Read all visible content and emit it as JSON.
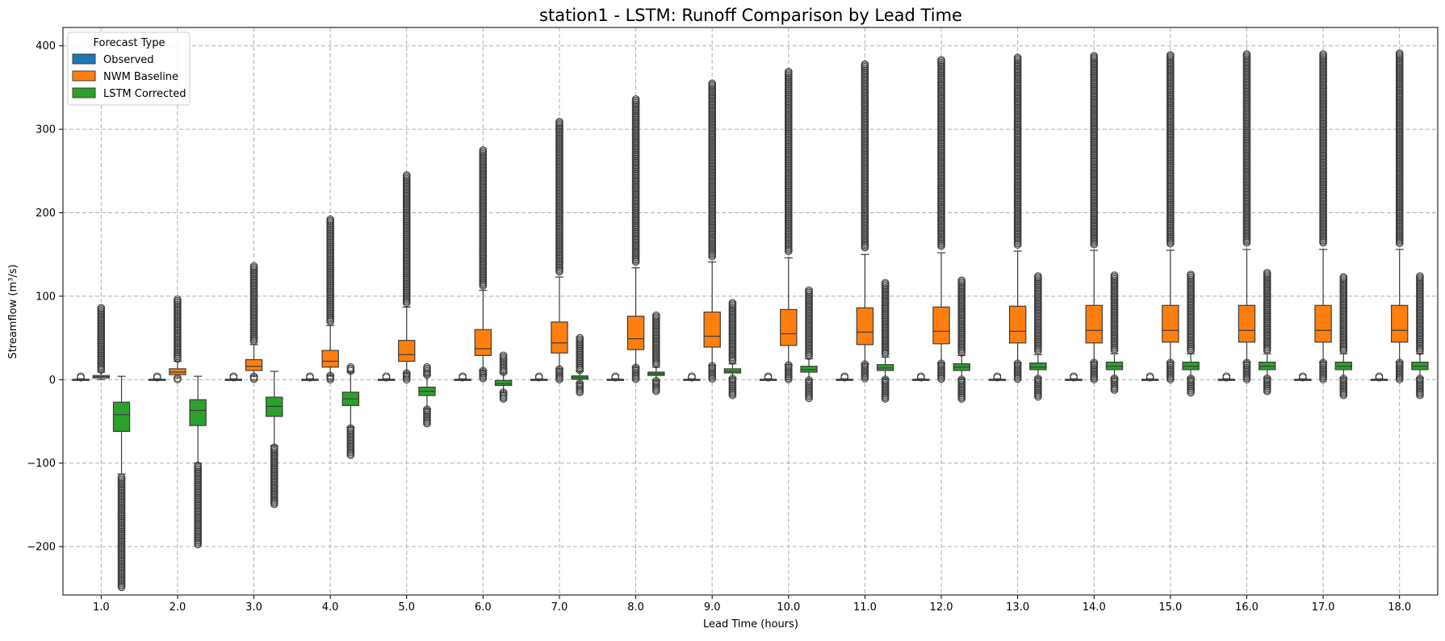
{
  "chart_data": {
    "type": "box",
    "title": "station1 - LSTM: Runoff Comparison by Lead Time",
    "xlabel": "Lead Time (hours)",
    "ylabel": "Streamflow (m³/s)",
    "ylim": [
      -258,
      422
    ],
    "yticks": [
      -200,
      -100,
      0,
      100,
      200,
      300,
      400
    ],
    "grid": true,
    "legend": {
      "title": "Forecast Type",
      "position": "top-left"
    },
    "categories": [
      "1.0",
      "2.0",
      "3.0",
      "4.0",
      "5.0",
      "6.0",
      "7.0",
      "8.0",
      "9.0",
      "10.0",
      "11.0",
      "12.0",
      "13.0",
      "14.0",
      "15.0",
      "16.0",
      "17.0",
      "18.0"
    ],
    "series": [
      {
        "name": "Observed",
        "color": "#1f77b4",
        "boxes": [
          {
            "q1": 0,
            "median": 0,
            "q3": 0.5,
            "wlo": 0,
            "whi": 1,
            "fmin": 0,
            "fmax": 4
          },
          {
            "q1": 0,
            "median": 0,
            "q3": 0.5,
            "wlo": 0,
            "whi": 1,
            "fmin": 0,
            "fmax": 4
          },
          {
            "q1": 0,
            "median": 0,
            "q3": 0.5,
            "wlo": 0,
            "whi": 1,
            "fmin": 0,
            "fmax": 4
          },
          {
            "q1": 0,
            "median": 0,
            "q3": 0.5,
            "wlo": 0,
            "whi": 1,
            "fmin": 0,
            "fmax": 4
          },
          {
            "q1": 0,
            "median": 0,
            "q3": 0.5,
            "wlo": 0,
            "whi": 1,
            "fmin": 0,
            "fmax": 4
          },
          {
            "q1": 0,
            "median": 0,
            "q3": 0.5,
            "wlo": 0,
            "whi": 1,
            "fmin": 0,
            "fmax": 4
          },
          {
            "q1": 0,
            "median": 0,
            "q3": 0.5,
            "wlo": 0,
            "whi": 1,
            "fmin": 0,
            "fmax": 4
          },
          {
            "q1": 0,
            "median": 0,
            "q3": 0.5,
            "wlo": 0,
            "whi": 1,
            "fmin": 0,
            "fmax": 4
          },
          {
            "q1": 0,
            "median": 0,
            "q3": 0.5,
            "wlo": 0,
            "whi": 1,
            "fmin": 0,
            "fmax": 4
          },
          {
            "q1": 0,
            "median": 0,
            "q3": 0.5,
            "wlo": 0,
            "whi": 1,
            "fmin": 0,
            "fmax": 4
          },
          {
            "q1": 0,
            "median": 0,
            "q3": 0.5,
            "wlo": 0,
            "whi": 1,
            "fmin": 0,
            "fmax": 4
          },
          {
            "q1": 0,
            "median": 0,
            "q3": 0.5,
            "wlo": 0,
            "whi": 1,
            "fmin": 0,
            "fmax": 4
          },
          {
            "q1": 0,
            "median": 0,
            "q3": 0.5,
            "wlo": 0,
            "whi": 1,
            "fmin": 0,
            "fmax": 4
          },
          {
            "q1": 0,
            "median": 0,
            "q3": 0.5,
            "wlo": 0,
            "whi": 1,
            "fmin": 0,
            "fmax": 4
          },
          {
            "q1": 0,
            "median": 0,
            "q3": 0.5,
            "wlo": 0,
            "whi": 1,
            "fmin": 0,
            "fmax": 4
          },
          {
            "q1": 0,
            "median": 0,
            "q3": 0.5,
            "wlo": 0,
            "whi": 1,
            "fmin": 0,
            "fmax": 4
          },
          {
            "q1": 0,
            "median": 0,
            "q3": 0.5,
            "wlo": 0,
            "whi": 1,
            "fmin": 0,
            "fmax": 4
          },
          {
            "q1": 0,
            "median": 0,
            "q3": 0.5,
            "wlo": 0,
            "whi": 1,
            "fmin": 0,
            "fmax": 4
          }
        ]
      },
      {
        "name": "NWM Baseline",
        "color": "#ff7f0e",
        "boxes": [
          {
            "q1": 2,
            "median": 3.5,
            "q3": 5,
            "wlo": 0,
            "whi": 9,
            "fmin": 0,
            "fmax": 86
          },
          {
            "q1": 6,
            "median": 9,
            "q3": 13,
            "wlo": 2,
            "whi": 22,
            "fmin": 0,
            "fmax": 96
          },
          {
            "q1": 11,
            "median": 16,
            "q3": 24,
            "wlo": 4,
            "whi": 42,
            "fmin": 0,
            "fmax": 136
          },
          {
            "q1": 15,
            "median": 22,
            "q3": 35,
            "wlo": 5,
            "whi": 65,
            "fmin": 0,
            "fmax": 192
          },
          {
            "q1": 22,
            "median": 30,
            "q3": 47,
            "wlo": 8,
            "whi": 87,
            "fmin": 0,
            "fmax": 245
          },
          {
            "q1": 29,
            "median": 37,
            "q3": 60,
            "wlo": 11,
            "whi": 107,
            "fmin": 0,
            "fmax": 275
          },
          {
            "q1": 32,
            "median": 44,
            "q3": 69,
            "wlo": 13,
            "whi": 123,
            "fmin": 0,
            "fmax": 309
          },
          {
            "q1": 36,
            "median": 49,
            "q3": 76,
            "wlo": 15,
            "whi": 134,
            "fmin": 0,
            "fmax": 336
          },
          {
            "q1": 39,
            "median": 52,
            "q3": 81,
            "wlo": 17,
            "whi": 141,
            "fmin": 0,
            "fmax": 355
          },
          {
            "q1": 41,
            "median": 55,
            "q3": 84,
            "wlo": 18,
            "whi": 146,
            "fmin": 0,
            "fmax": 369
          },
          {
            "q1": 42,
            "median": 57,
            "q3": 86,
            "wlo": 19,
            "whi": 150,
            "fmin": 0,
            "fmax": 378
          },
          {
            "q1": 43,
            "median": 58,
            "q3": 87,
            "wlo": 20,
            "whi": 152,
            "fmin": 0,
            "fmax": 383
          },
          {
            "q1": 44,
            "median": 58,
            "q3": 88,
            "wlo": 20,
            "whi": 154,
            "fmin": 0,
            "fmax": 386
          },
          {
            "q1": 44,
            "median": 59,
            "q3": 89,
            "wlo": 21,
            "whi": 155,
            "fmin": 0,
            "fmax": 388
          },
          {
            "q1": 45,
            "median": 59,
            "q3": 89,
            "wlo": 21,
            "whi": 155,
            "fmin": 0,
            "fmax": 389
          },
          {
            "q1": 45,
            "median": 59,
            "q3": 89,
            "wlo": 21,
            "whi": 156,
            "fmin": 0,
            "fmax": 390
          },
          {
            "q1": 45,
            "median": 59,
            "q3": 89,
            "wlo": 21,
            "whi": 156,
            "fmin": 0,
            "fmax": 390
          },
          {
            "q1": 45,
            "median": 59,
            "q3": 89,
            "wlo": 21,
            "whi": 156,
            "fmin": 0,
            "fmax": 391
          }
        ]
      },
      {
        "name": "LSTM Corrected",
        "color": "#2ca02c",
        "boxes": [
          {
            "q1": -62,
            "median": -42,
            "q3": -27,
            "wlo": -113,
            "whi": 4,
            "fmin": -250,
            "fmax": 4
          },
          {
            "q1": -55,
            "median": -37,
            "q3": -24,
            "wlo": -100,
            "whi": 4,
            "fmin": -198,
            "fmax": 4
          },
          {
            "q1": -44,
            "median": -32,
            "q3": -21,
            "wlo": -79,
            "whi": 10,
            "fmin": -150,
            "fmax": 10
          },
          {
            "q1": -31,
            "median": -23,
            "q3": -15,
            "wlo": -57,
            "whi": 9,
            "fmin": -92,
            "fmax": 15
          },
          {
            "q1": -19,
            "median": -14,
            "q3": -9,
            "wlo": -35,
            "whi": 5,
            "fmin": -53,
            "fmax": 15
          },
          {
            "q1": -7,
            "median": -5,
            "q3": -1,
            "wlo": -15,
            "whi": 8,
            "fmin": -24,
            "fmax": 29
          },
          {
            "q1": 0.5,
            "median": 2.5,
            "q3": 4.5,
            "wlo": -4,
            "whi": 10,
            "fmin": -16,
            "fmax": 50
          },
          {
            "q1": 5,
            "median": 7,
            "q3": 9,
            "wlo": -1,
            "whi": 15,
            "fmin": -14,
            "fmax": 77
          },
          {
            "q1": 8,
            "median": 10,
            "q3": 13,
            "wlo": 2,
            "whi": 19,
            "fmin": -19,
            "fmax": 92
          },
          {
            "q1": 9,
            "median": 12,
            "q3": 16,
            "wlo": 0,
            "whi": 25,
            "fmin": -23,
            "fmax": 107
          },
          {
            "q1": 11,
            "median": 14,
            "q3": 18,
            "wlo": 1,
            "whi": 27,
            "fmin": -24,
            "fmax": 116
          },
          {
            "q1": 11,
            "median": 15,
            "q3": 19,
            "wlo": 1,
            "whi": 29,
            "fmin": -24,
            "fmax": 119
          },
          {
            "q1": 12,
            "median": 15,
            "q3": 20,
            "wlo": 2,
            "whi": 30,
            "fmin": -21,
            "fmax": 124
          },
          {
            "q1": 12,
            "median": 16,
            "q3": 21,
            "wlo": 2,
            "whi": 31,
            "fmin": -13,
            "fmax": 125
          },
          {
            "q1": 12,
            "median": 16,
            "q3": 21,
            "wlo": 2,
            "whi": 31,
            "fmin": -16,
            "fmax": 126
          },
          {
            "q1": 12,
            "median": 16,
            "q3": 21,
            "wlo": 2,
            "whi": 31,
            "fmin": -14,
            "fmax": 128
          },
          {
            "q1": 12,
            "median": 16,
            "q3": 21,
            "wlo": 2,
            "whi": 31,
            "fmin": -19,
            "fmax": 123
          },
          {
            "q1": 12,
            "median": 16,
            "q3": 21,
            "wlo": 2,
            "whi": 31,
            "fmin": -19,
            "fmax": 124
          }
        ]
      }
    ]
  }
}
